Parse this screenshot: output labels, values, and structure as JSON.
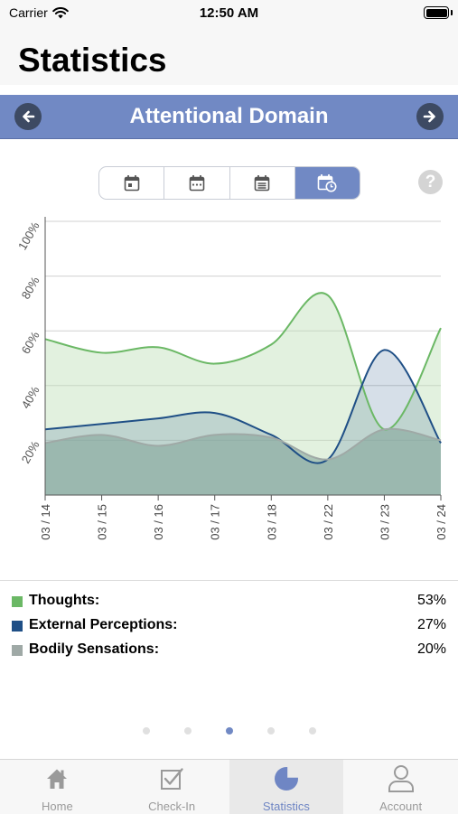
{
  "status_bar": {
    "carrier": "Carrier",
    "time": "12:50 AM"
  },
  "header": {
    "title": "Statistics"
  },
  "domain_nav": {
    "title": "Attentional Domain",
    "prev_icon": "arrow-left-icon",
    "next_icon": "arrow-right-icon"
  },
  "range_selector": {
    "options": [
      {
        "icon": "calendar-day-icon"
      },
      {
        "icon": "calendar-week-icon"
      },
      {
        "icon": "calendar-month-icon"
      },
      {
        "icon": "calendar-clock-icon",
        "selected": true
      }
    ]
  },
  "help": {
    "label": "?"
  },
  "chart_data": {
    "type": "area",
    "categories": [
      "03 / 14",
      "03 / 15",
      "03 / 16",
      "03 / 17",
      "03 / 18",
      "03 / 22",
      "03 / 23",
      "03 / 24"
    ],
    "y_ticks": [
      "20%",
      "40%",
      "60%",
      "80%",
      "100%"
    ],
    "ylim": [
      0,
      100
    ],
    "grid": true,
    "series": [
      {
        "name": "Thoughts",
        "color": "#6bb865",
        "values": [
          57,
          52,
          54,
          48,
          55,
          73,
          24,
          61
        ]
      },
      {
        "name": "External Perceptions",
        "color": "#1f4f86",
        "values": [
          24,
          26,
          28,
          30,
          22,
          13,
          53,
          19
        ]
      },
      {
        "name": "Bodily Sensations",
        "color": "#9fa9a6",
        "values": [
          19,
          22,
          18,
          22,
          21,
          13,
          24,
          20
        ]
      }
    ]
  },
  "legend": [
    {
      "label": "Thoughts:",
      "value": "53%",
      "color": "#6bb865"
    },
    {
      "label": "External Perceptions:",
      "value": "27%",
      "color": "#1f4f86"
    },
    {
      "label": "Bodily Sensations:",
      "value": "20%",
      "color": "#9fa9a6"
    }
  ],
  "pager": {
    "count": 5,
    "active_index": 2
  },
  "tab_bar": {
    "tabs": [
      {
        "label": "Home",
        "icon": "home-icon"
      },
      {
        "label": "Check-In",
        "icon": "checkbox-icon"
      },
      {
        "label": "Statistics",
        "icon": "pie-chart-icon",
        "active": true
      },
      {
        "label": "Account",
        "icon": "user-icon"
      }
    ]
  }
}
